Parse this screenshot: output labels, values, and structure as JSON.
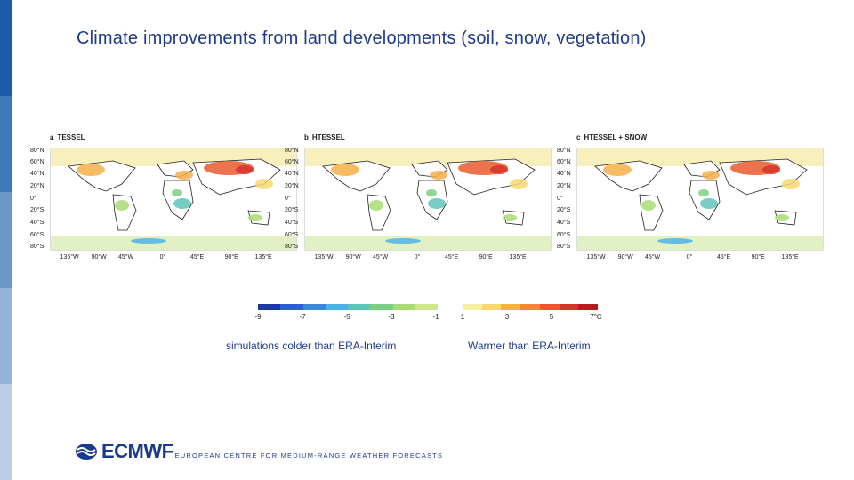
{
  "page": {
    "title": "Climate improvements from land developments (soil, snow, vegetation)"
  },
  "sidebar": {
    "colors": [
      "#1a5aa6",
      "#3f78ba",
      "#6d95c8",
      "#95b3d8",
      "#bccde6"
    ]
  },
  "panels": [
    {
      "letter": "a",
      "label": "TESSEL",
      "lat_labels": [
        "80°N",
        "60°N",
        "40°N",
        "20°N",
        "0°",
        "20°S",
        "40°S",
        "60°S",
        "80°S"
      ],
      "lon_labels": [
        "135°W",
        "90°W",
        "45°W",
        "0°",
        "45°E",
        "90°E",
        "135°E"
      ]
    },
    {
      "letter": "b",
      "label": "HTESSEL",
      "lat_labels": [
        "80°N",
        "60°N",
        "40°N",
        "20°N",
        "0°",
        "20°S",
        "40°S",
        "60°S",
        "80°S"
      ],
      "lon_labels": [
        "135°W",
        "90°W",
        "45°W",
        "0°",
        "45°E",
        "90°E",
        "135°E"
      ]
    },
    {
      "letter": "c",
      "label": "HTESSEL + SNOW",
      "lat_labels": [
        "80°N",
        "60°N",
        "40°N",
        "20°N",
        "0°",
        "20°S",
        "40°S",
        "60°S",
        "80°S"
      ],
      "lon_labels": [
        "135°W",
        "90°W",
        "45°W",
        "0°",
        "45°E",
        "90°E",
        "135°E"
      ]
    }
  ],
  "colorbar_cold": {
    "colors": [
      "#1d3aa0",
      "#2d62c4",
      "#3a8ad8",
      "#4cb3e6",
      "#5fc4b8",
      "#7ccf82",
      "#a8dc74",
      "#cfe88a"
    ],
    "ticks": [
      "-9",
      "-7",
      "-5",
      "-3",
      "-1"
    ]
  },
  "colorbar_warm": {
    "colors": [
      "#f7f0a0",
      "#f7d870",
      "#f5b04a",
      "#f08a3a",
      "#e85a2e",
      "#d8322a",
      "#b01e1e"
    ],
    "ticks": [
      "1",
      "3",
      "5",
      "7°C"
    ]
  },
  "legend": {
    "cold_text": "simulations colder than ERA-Interim",
    "warm_text": "Warmer than ERA-Interim"
  },
  "footer": {
    "logo": "ECMWF",
    "subtitle": "EUROPEAN CENTRE FOR MEDIUM-RANGE WEATHER FORECASTS"
  }
}
